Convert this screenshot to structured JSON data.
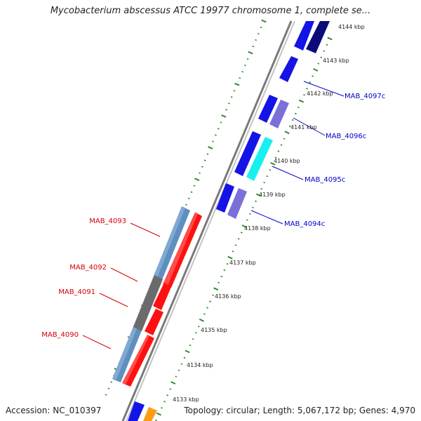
{
  "title": "Mycobacterium abscessus ATCC 19977 chromosome 1, complete se...",
  "accession_text": "Accession: NC_010397",
  "stats_text": "Topology: circular; Length: 5,067,172 bp; Genes: 4,970",
  "colors": {
    "backbone": "#8c8c8c",
    "tick_green": "#2e8b2e",
    "gene_red": "#ff1010",
    "gene_steelblue": "#5e8fc0",
    "gene_gray": "#6b6b6b",
    "gene_blue": "#1414e6",
    "gene_navy": "#0c0c78",
    "gene_lavender": "#7a70d8",
    "gene_cyan": "#18f0f0",
    "gene_orange": "#ff9c14",
    "label_red": "#d40000",
    "label_blue": "#0000c8"
  },
  "kbp_ticks": [
    {
      "label": "4133 kbp"
    },
    {
      "label": "4134 kbp"
    },
    {
      "label": "4135 kbp"
    },
    {
      "label": "4136 kbp"
    },
    {
      "label": "4137 kbp"
    },
    {
      "label": "4138 kbp"
    },
    {
      "label": "4139 kbp"
    },
    {
      "label": "4140 kbp"
    },
    {
      "label": "4141 kbp"
    },
    {
      "label": "4142 kbp"
    },
    {
      "label": "4143 kbp"
    },
    {
      "label": "4144 kbp"
    }
  ],
  "gene_labels_left": [
    {
      "text": "MAB_4093"
    },
    {
      "text": "MAB_4092"
    },
    {
      "text": "MAB_4091"
    },
    {
      "text": "MAB_4090"
    }
  ],
  "gene_labels_right": [
    {
      "text": "MAB_4097c"
    },
    {
      "text": "MAB_4096c"
    },
    {
      "text": "MAB_4095c"
    },
    {
      "text": "MAB_4094c"
    }
  ]
}
